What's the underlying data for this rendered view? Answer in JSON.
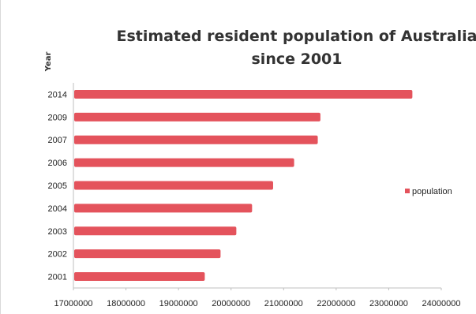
{
  "chart_data": {
    "type": "bar",
    "orientation": "horizontal",
    "title_lines": [
      "Estimated resident population of Australia",
      "since 2001"
    ],
    "xlabel": "",
    "ylabel": "Year",
    "categories": [
      "2001",
      "2002",
      "2003",
      "2004",
      "2005",
      "2006",
      "2007",
      "2009",
      "2014"
    ],
    "series": [
      {
        "name": "population",
        "color": "#e4535c",
        "values": [
          19500000,
          19800000,
          20100000,
          20400000,
          20800000,
          21200000,
          21650000,
          21700000,
          23450000
        ]
      }
    ],
    "xlim": [
      17000000,
      24000000
    ],
    "xticks": [
      17000000,
      18000000,
      19000000,
      20000000,
      21000000,
      22000000,
      23000000,
      24000000
    ],
    "xtick_labels": [
      "17000000",
      "18000000",
      "19000000",
      "20000000",
      "21000000",
      "22000000",
      "23000000",
      "24000000"
    ],
    "grid": false,
    "legend_position": "right"
  }
}
